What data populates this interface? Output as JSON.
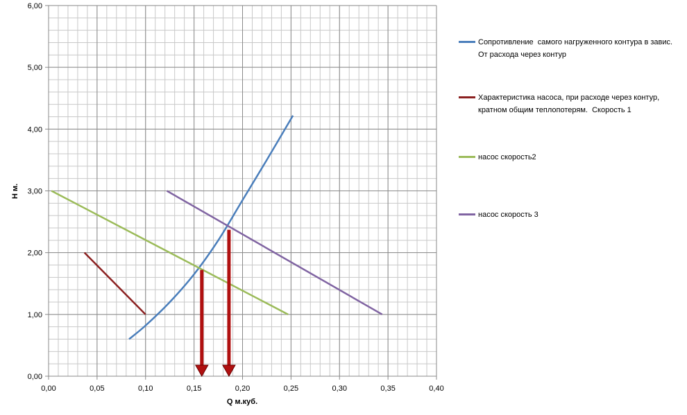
{
  "chart_data": {
    "type": "line",
    "x_label": "Q м.куб.",
    "y_label": "H м.",
    "xlim": [
      0,
      0.4
    ],
    "ylim": [
      0,
      6
    ],
    "xticks": [
      {
        "value": 0,
        "label": "0,00"
      },
      {
        "value": 0.05,
        "label": "0,05"
      },
      {
        "value": 0.1,
        "label": "0,10"
      },
      {
        "value": 0.15,
        "label": "0,15"
      },
      {
        "value": 0.2,
        "label": "0,20"
      },
      {
        "value": 0.25,
        "label": "0,25"
      },
      {
        "value": 0.3,
        "label": "0,30"
      },
      {
        "value": 0.35,
        "label": "0,35"
      },
      {
        "value": 0.4,
        "label": "0,40"
      }
    ],
    "yticks": [
      {
        "value": 0,
        "label": "0,00"
      },
      {
        "value": 1,
        "label": "1,00"
      },
      {
        "value": 2,
        "label": "2,00"
      },
      {
        "value": 3,
        "label": "3,00"
      },
      {
        "value": 4,
        "label": "4,00"
      },
      {
        "value": 5,
        "label": "5,00"
      },
      {
        "value": 6,
        "label": "6,00"
      }
    ],
    "grid": true,
    "x_minor_step": 0.01,
    "y_minor_step": 0.2,
    "legend": "right",
    "series": [
      {
        "name": "Сопротивление  самого нагруженного контура в завис. От расхода через контур",
        "color": "#4a7ebb",
        "x": [
          0.083,
          0.1,
          0.125,
          0.15,
          0.175,
          0.2,
          0.225,
          0.252
        ],
        "values": [
          0.6,
          0.82,
          1.2,
          1.65,
          2.2,
          2.85,
          3.5,
          4.22
        ]
      },
      {
        "name": "Характеристика насоса, при расходе через контур, кратном общим теплопотерям.  Скорость 1",
        "color": "#8b2020",
        "x": [
          0.037,
          0.1
        ],
        "values": [
          2.0,
          1.0
        ]
      },
      {
        "name": "насос скорость2",
        "color": "#9bbb59",
        "x": [
          0.003,
          0.247
        ],
        "values": [
          3.0,
          1.0
        ]
      },
      {
        "name": "насос скорость 3",
        "color": "#8064a2",
        "x": [
          0.122,
          0.344
        ],
        "values": [
          3.0,
          1.0
        ]
      }
    ],
    "arrows": {
      "color": "#b01010",
      "x": [
        0.158,
        0.186
      ],
      "values": [
        1.72,
        2.37
      ]
    }
  }
}
